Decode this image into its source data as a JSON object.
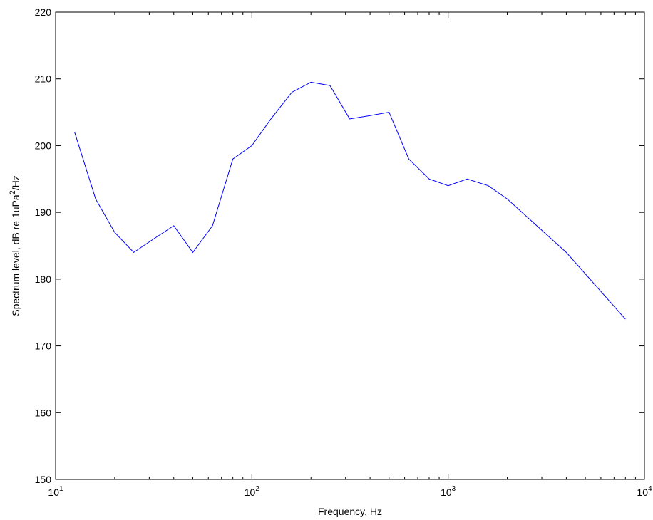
{
  "chart_data": {
    "type": "line",
    "title": "",
    "xlabel": "Frequency, Hz",
    "ylabel_main": "Spectrum level, dB re 1uPa",
    "ylabel_sup": "2",
    "ylabel_tail": "/Hz",
    "xscale": "log",
    "xlim": [
      10,
      10000
    ],
    "ylim": [
      150,
      220
    ],
    "grid": false,
    "legend": "none",
    "line_color": "#0000ff",
    "x_ticks": [
      {
        "base": "10",
        "exp": "1",
        "value": 10
      },
      {
        "base": "10",
        "exp": "2",
        "value": 100
      },
      {
        "base": "10",
        "exp": "3",
        "value": 1000
      },
      {
        "base": "10",
        "exp": "4",
        "value": 10000
      }
    ],
    "y_ticks": [
      150,
      160,
      170,
      180,
      190,
      200,
      210,
      220
    ],
    "x": [
      12.5,
      16,
      20,
      25,
      31.5,
      40,
      50,
      63,
      80,
      100,
      125,
      160,
      200,
      250,
      315,
      400,
      500,
      630,
      800,
      1000,
      1250,
      1600,
      2000,
      4000,
      8000
    ],
    "y": [
      202,
      192,
      187,
      184,
      186,
      188,
      184,
      188,
      198,
      200,
      204,
      208,
      209.5,
      209,
      204,
      204.5,
      205,
      198,
      195,
      194,
      195,
      194,
      192,
      184,
      174
    ]
  }
}
